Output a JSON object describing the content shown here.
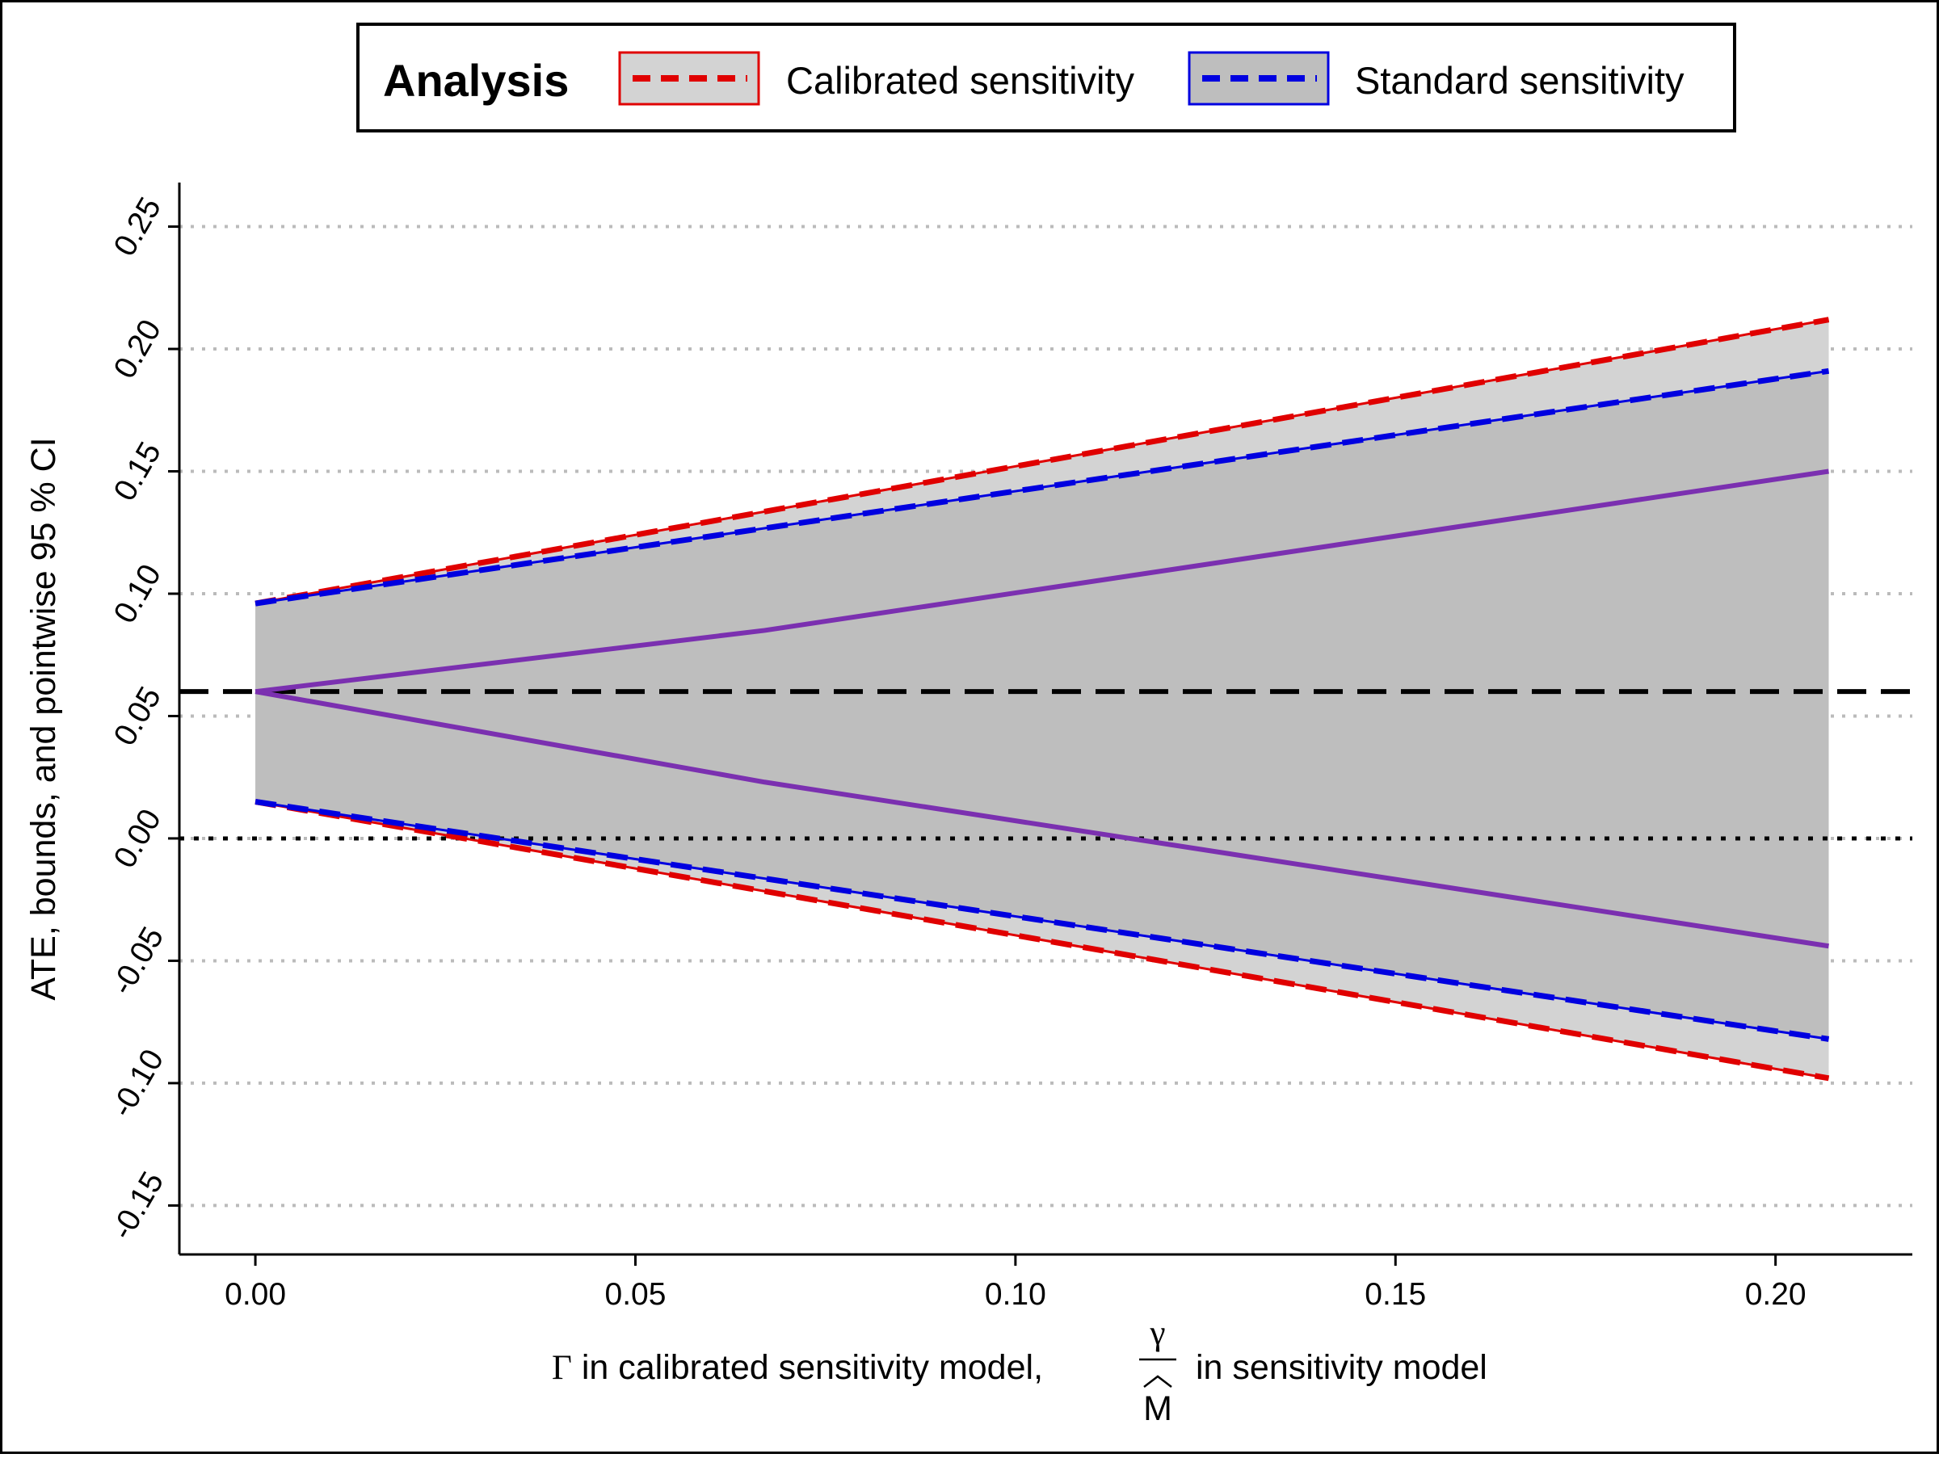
{
  "chart_data": {
    "type": "line",
    "legend": {
      "title": "Analysis",
      "position": "top",
      "entries": [
        {
          "label": "Calibrated sensitivity",
          "color": "#e00000",
          "border": "#e00000",
          "fill": "#d3d3d3"
        },
        {
          "label": "Standard sensitivity",
          "color": "#0000e0",
          "border": "#0000e0",
          "fill": "#bebebe"
        }
      ]
    },
    "xlabel": {
      "part1": "Γ",
      "part2": " in calibrated sensitivity model, ",
      "frac_num": "γ",
      "frac_den": "M",
      "part3": " in sensitivity model"
    },
    "ylabel": "ATE, bounds, and pointwise 95 % CI",
    "xlim": [
      -0.01,
      0.218
    ],
    "ylim": [
      -0.17,
      0.268
    ],
    "x_ticks": [
      {
        "value": 0.0,
        "label": "0.00"
      },
      {
        "value": 0.05,
        "label": "0.05"
      },
      {
        "value": 0.1,
        "label": "0.10"
      },
      {
        "value": 0.15,
        "label": "0.15"
      },
      {
        "value": 0.2,
        "label": "0.20"
      }
    ],
    "y_ticks": [
      {
        "value": -0.15,
        "label": "-0.15"
      },
      {
        "value": -0.1,
        "label": "-0.10"
      },
      {
        "value": -0.05,
        "label": "-0.05"
      },
      {
        "value": 0.0,
        "label": "0.00"
      },
      {
        "value": 0.05,
        "label": "0.05"
      },
      {
        "value": 0.1,
        "label": "0.10"
      },
      {
        "value": 0.15,
        "label": "0.15"
      },
      {
        "value": 0.2,
        "label": "0.20"
      },
      {
        "value": 0.25,
        "label": "0.25"
      }
    ],
    "grid": {
      "horizontal": true,
      "style": "dotted",
      "color": "#bbbbbb"
    },
    "reference_lines": [
      {
        "y": 0.06,
        "style": "dashed",
        "color": "#000000"
      },
      {
        "y": 0.0,
        "style": "dotted",
        "color": "#000000"
      }
    ],
    "series": [
      {
        "name": "Calibrated sensitivity",
        "role": "ci",
        "color": "#e00000",
        "x": [
          0.0,
          0.207
        ],
        "upper": [
          0.096,
          0.212
        ],
        "lower": [
          0.015,
          -0.098
        ]
      },
      {
        "name": "Standard sensitivity",
        "role": "ci",
        "color": "#0000e0",
        "x": [
          0.0,
          0.207
        ],
        "upper": [
          0.096,
          0.191
        ],
        "lower": [
          0.015,
          -0.082
        ]
      }
    ],
    "bounds": {
      "color": "#7b30b0",
      "upper": {
        "x": [
          0.0,
          0.067,
          0.207
        ],
        "y": [
          0.06,
          0.085,
          0.15
        ]
      },
      "lower": {
        "x": [
          0.0,
          0.067,
          0.207
        ],
        "y": [
          0.06,
          0.023,
          -0.044
        ]
      }
    }
  }
}
